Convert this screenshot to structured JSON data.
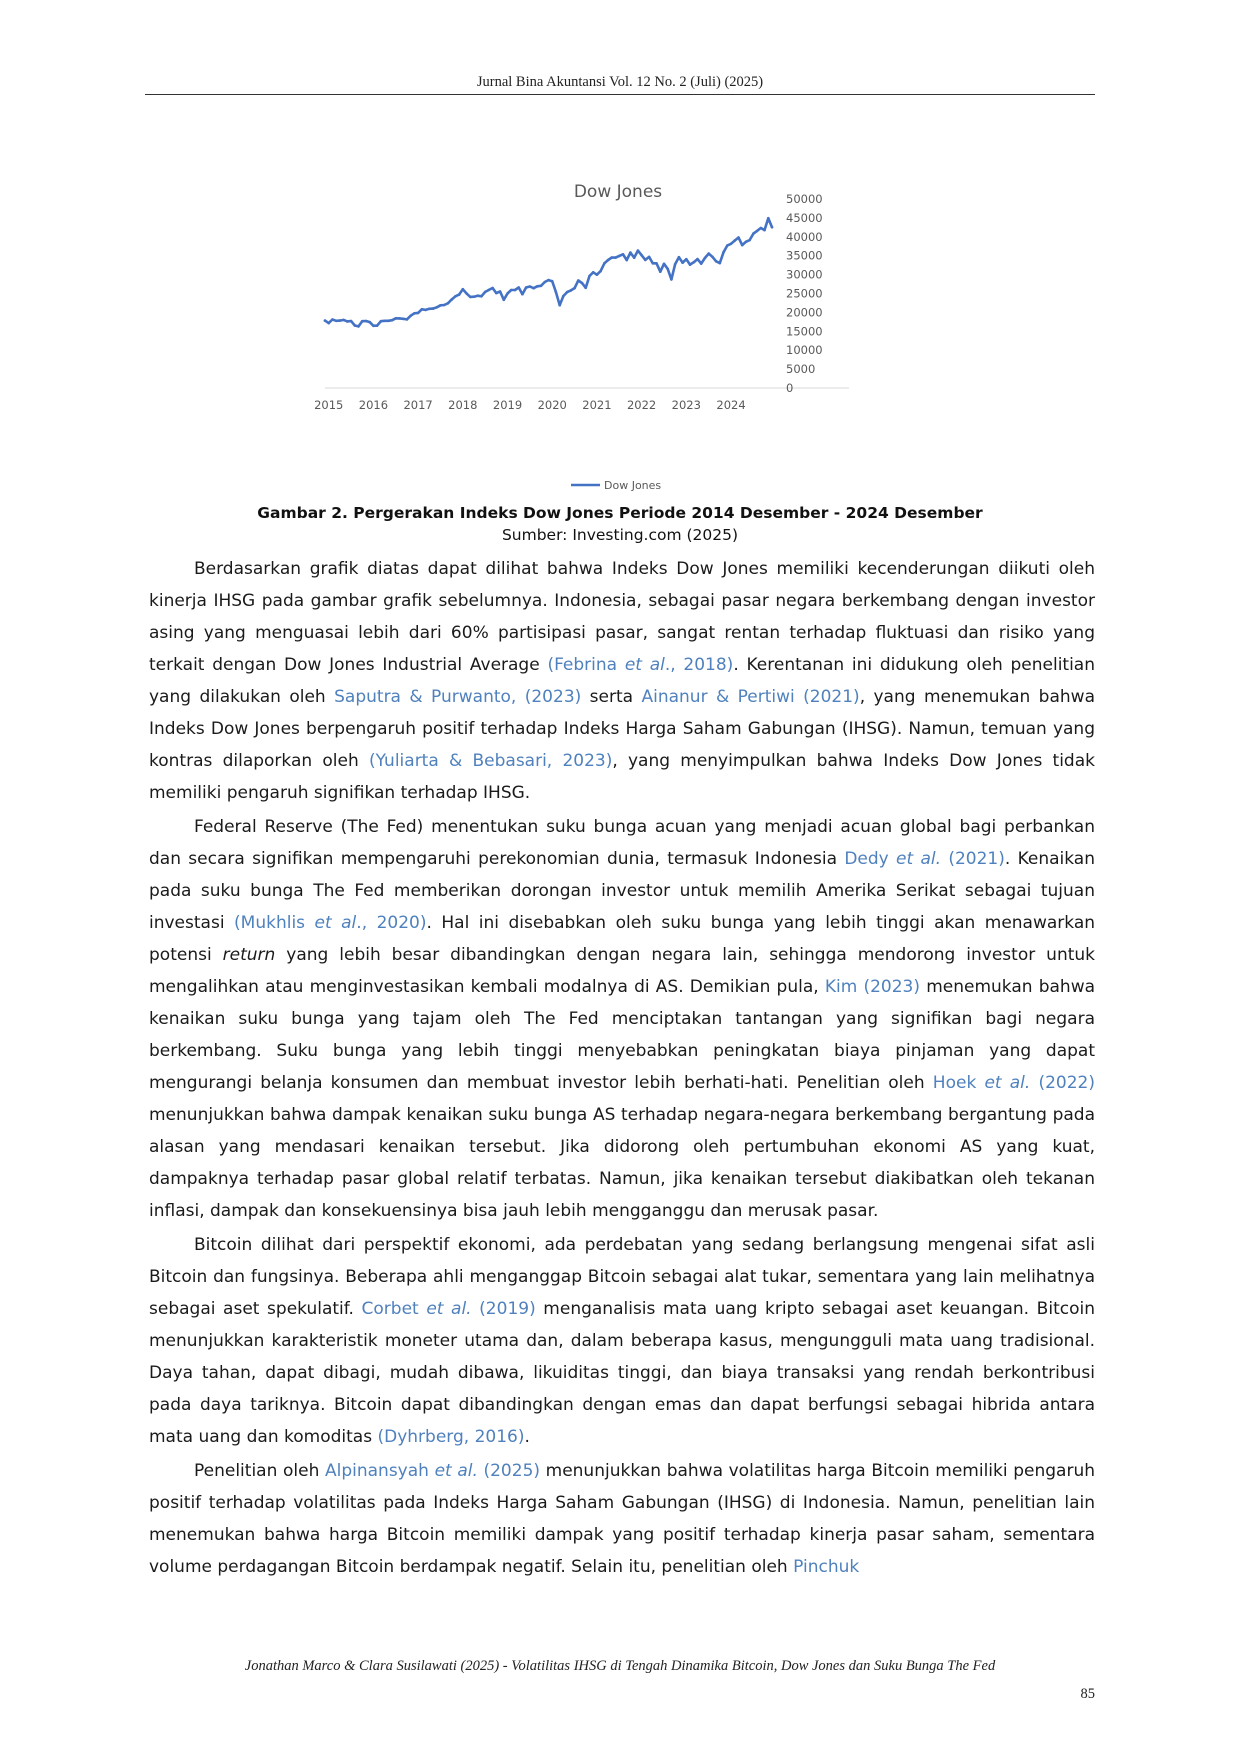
{
  "header": {
    "running_head": "Jurnal Bina Akuntansi Vol. 12 No. 2 (Juli) (2025)"
  },
  "chart_data": {
    "type": "line",
    "title": "Dow Jones",
    "x_tick_labels": [
      "2015",
      "2016",
      "2017",
      "2018",
      "2019",
      "2020",
      "2021",
      "2022",
      "2023",
      "2024"
    ],
    "y_tick_labels": [
      "50000",
      "45000",
      "40000",
      "35000",
      "30000",
      "25000",
      "20000",
      "15000",
      "10000",
      "5000",
      "0"
    ],
    "ylim": [
      0,
      50000
    ],
    "y_axis_position": "right",
    "grid": false,
    "legend_position": "bottom",
    "series_color": "#4472c4",
    "series": [
      {
        "name": "Dow Jones",
        "x": [
          "2014-12",
          "2015-01",
          "2015-02",
          "2015-03",
          "2015-04",
          "2015-05",
          "2015-06",
          "2015-07",
          "2015-08",
          "2015-09",
          "2015-10",
          "2015-11",
          "2015-12",
          "2016-01",
          "2016-02",
          "2016-03",
          "2016-04",
          "2016-05",
          "2016-06",
          "2016-07",
          "2016-08",
          "2016-09",
          "2016-10",
          "2016-11",
          "2016-12",
          "2017-01",
          "2017-02",
          "2017-03",
          "2017-04",
          "2017-05",
          "2017-06",
          "2017-07",
          "2017-08",
          "2017-09",
          "2017-10",
          "2017-11",
          "2017-12",
          "2018-01",
          "2018-02",
          "2018-03",
          "2018-04",
          "2018-05",
          "2018-06",
          "2018-07",
          "2018-08",
          "2018-09",
          "2018-10",
          "2018-11",
          "2018-12",
          "2019-01",
          "2019-02",
          "2019-03",
          "2019-04",
          "2019-05",
          "2019-06",
          "2019-07",
          "2019-08",
          "2019-09",
          "2019-10",
          "2019-11",
          "2019-12",
          "2020-01",
          "2020-02",
          "2020-03",
          "2020-04",
          "2020-05",
          "2020-06",
          "2020-07",
          "2020-08",
          "2020-09",
          "2020-10",
          "2020-11",
          "2020-12",
          "2021-01",
          "2021-02",
          "2021-03",
          "2021-04",
          "2021-05",
          "2021-06",
          "2021-07",
          "2021-08",
          "2021-09",
          "2021-10",
          "2021-11",
          "2021-12",
          "2022-01",
          "2022-02",
          "2022-03",
          "2022-04",
          "2022-05",
          "2022-06",
          "2022-07",
          "2022-08",
          "2022-09",
          "2022-10",
          "2022-11",
          "2022-12",
          "2023-01",
          "2023-02",
          "2023-03",
          "2023-04",
          "2023-05",
          "2023-06",
          "2023-07",
          "2023-08",
          "2023-09",
          "2023-10",
          "2023-11",
          "2023-12",
          "2024-01",
          "2024-02",
          "2024-03",
          "2024-04",
          "2024-05",
          "2024-06",
          "2024-07",
          "2024-08",
          "2024-09",
          "2024-10",
          "2024-11",
          "2024-12"
        ],
        "values": [
          17823,
          17165,
          18133,
          17776,
          17841,
          18011,
          17620,
          17690,
          16528,
          16285,
          17664,
          17720,
          17425,
          16466,
          16517,
          17685,
          17774,
          17787,
          17930,
          18432,
          18401,
          18308,
          18142,
          19124,
          19763,
          19864,
          20812,
          20663,
          20941,
          21009,
          21350,
          21891,
          21948,
          22405,
          23377,
          24272,
          24719,
          26149,
          25029,
          24103,
          24163,
          24416,
          24271,
          25415,
          25965,
          26458,
          25116,
          25538,
          23327,
          24999,
          25916,
          25929,
          26593,
          24815,
          26600,
          26864,
          26403,
          26917,
          27046,
          28051,
          28538,
          28256,
          25409,
          21917,
          24346,
          25383,
          25813,
          26428,
          28430,
          27782,
          26502,
          29638,
          30606,
          29983,
          30932,
          32982,
          33875,
          34529,
          34503,
          34935,
          35361,
          33844,
          35820,
          34484,
          36338,
          35132,
          33893,
          34678,
          32977,
          32990,
          30775,
          32845,
          31510,
          28726,
          32733,
          34590,
          33147,
          34086,
          32657,
          33274,
          34098,
          32908,
          34408,
          35560,
          34722,
          33508,
          33053,
          35951,
          37690,
          38150,
          38996,
          39807,
          37816,
          38686,
          39119,
          40843,
          41563,
          42330,
          41763,
          44910,
          42544
        ]
      }
    ],
    "legend": [
      "Dow Jones"
    ]
  },
  "figure": {
    "caption": "Gambar 2. Pergerakan Indeks Dow Jones Periode 2014 Desember - 2024 Desember",
    "source": "Sumber: Investing.com (2025)"
  },
  "paragraphs": [
    [
      {
        "t": "Berdasarkan grafik diatas dapat dilihat bahwa Indeks Dow Jones memiliki kecenderungan diikuti oleh kinerja IHSG pada gambar grafik sebelumnya. Indonesia, sebagai pasar negara berkembang dengan investor asing yang menguasai lebih dari 60% partisipasi pasar, sangat rentan terhadap fluktuasi dan risiko yang terkait dengan Dow Jones Industrial Average "
      },
      {
        "t": "(Febrina ",
        "c": 1
      },
      {
        "t": "et al",
        "c": 1,
        "i": 1
      },
      {
        "t": "., 2018)",
        "c": 1
      },
      {
        "t": ". Kerentanan ini didukung oleh penelitian yang dilakukan oleh "
      },
      {
        "t": "Saputra & Purwanto, (2023)",
        "c": 1
      },
      {
        "t": " serta "
      },
      {
        "t": "Ainanur & Pertiwi (2021)",
        "c": 1
      },
      {
        "t": ", yang menemukan bahwa Indeks Dow Jones berpengaruh positif terhadap Indeks Harga Saham Gabungan (IHSG). Namun, temuan yang kontras dilaporkan oleh "
      },
      {
        "t": "(Yuliarta & Bebasari, 2023)",
        "c": 1
      },
      {
        "t": ", yang menyimpulkan bahwa Indeks Dow Jones tidak memiliki pengaruh signifikan terhadap IHSG."
      }
    ],
    [
      {
        "t": "Federal Reserve (The Fed) menentukan suku bunga acuan yang menjadi acuan global bagi perbankan dan secara signifikan mempengaruhi perekonomian dunia, termasuk Indonesia "
      },
      {
        "t": "Dedy ",
        "c": 1
      },
      {
        "t": "et al.",
        "c": 1,
        "i": 1
      },
      {
        "t": " (2021)",
        "c": 1
      },
      {
        "t": ". Kenaikan pada suku bunga The Fed memberikan dorongan investor untuk memilih Amerika Serikat sebagai tujuan investasi "
      },
      {
        "t": "(Mukhlis ",
        "c": 1
      },
      {
        "t": "et al",
        "c": 1,
        "i": 1
      },
      {
        "t": "., 2020)",
        "c": 1
      },
      {
        "t": ". Hal ini disebabkan oleh suku bunga yang lebih tinggi akan menawarkan potensi "
      },
      {
        "t": "return",
        "i": 1
      },
      {
        "t": " yang lebih besar dibandingkan dengan negara lain, sehingga mendorong investor untuk mengalihkan atau menginvestasikan kembali modalnya di AS. Demikian pula, "
      },
      {
        "t": "Kim (2023)",
        "c": 1
      },
      {
        "t": " menemukan bahwa kenaikan suku bunga yang tajam oleh The Fed menciptakan tantangan yang signifikan bagi negara berkembang. Suku bunga yang lebih tinggi menyebabkan peningkatan biaya pinjaman yang dapat mengurangi belanja konsumen dan membuat investor lebih berhati-hati. Penelitian oleh "
      },
      {
        "t": "Hoek ",
        "c": 1
      },
      {
        "t": "et al.",
        "c": 1,
        "i": 1
      },
      {
        "t": " (2022)",
        "c": 1
      },
      {
        "t": " menunjukkan bahwa dampak kenaikan suku bunga AS terhadap negara-negara berkembang bergantung pada alasan yang mendasari kenaikan tersebut. Jika didorong oleh pertumbuhan ekonomi AS yang kuat, dampaknya terhadap pasar global relatif terbatas. Namun, jika kenaikan tersebut diakibatkan oleh tekanan inflasi, dampak dan konsekuensinya bisa jauh lebih mengganggu dan merusak pasar."
      }
    ],
    [
      {
        "t": "Bitcoin dilihat dari perspektif ekonomi, ada perdebatan yang sedang berlangsung mengenai sifat asli Bitcoin dan fungsinya. Beberapa ahli menganggap Bitcoin sebagai alat tukar, sementara yang lain melihatnya sebagai aset spekulatif. "
      },
      {
        "t": "Corbet ",
        "c": 1
      },
      {
        "t": "et al.",
        "c": 1,
        "i": 1
      },
      {
        "t": " (2019)",
        "c": 1
      },
      {
        "t": " menganalisis mata uang kripto sebagai aset keuangan. Bitcoin menunjukkan karakteristik moneter utama dan, dalam beberapa kasus, mengungguli mata uang tradisional. Daya tahan, dapat dibagi, mudah dibawa, likuiditas tinggi, dan biaya transaksi yang rendah berkontribusi pada daya tariknya. Bitcoin dapat dibandingkan dengan emas dan dapat berfungsi sebagai hibrida antara mata uang dan komoditas "
      },
      {
        "t": "(Dyhrberg, 2016)",
        "c": 1
      },
      {
        "t": "."
      }
    ],
    [
      {
        "t": "Penelitian oleh  "
      },
      {
        "t": "Alpinansyah ",
        "c": 1
      },
      {
        "t": "et al.",
        "c": 1,
        "i": 1
      },
      {
        "t": " (2025)",
        "c": 1
      },
      {
        "t": " menunjukkan bahwa volatilitas harga Bitcoin memiliki pengaruh positif terhadap volatilitas pada Indeks Harga Saham Gabungan (IHSG) di Indonesia. Namun, penelitian lain menemukan bahwa harga Bitcoin memiliki dampak yang positif terhadap kinerja pasar saham, sementara volume perdagangan Bitcoin berdampak negatif. Selain itu, penelitian oleh "
      },
      {
        "t": "Pinchuk",
        "c": 1
      }
    ]
  ],
  "footer": {
    "citation": "Jonathan Marco & Clara Susilawati (2025) - Volatilitas IHSG di Tengah Dinamika Bitcoin, Dow Jones dan Suku Bunga The Fed",
    "page_number": "85"
  }
}
